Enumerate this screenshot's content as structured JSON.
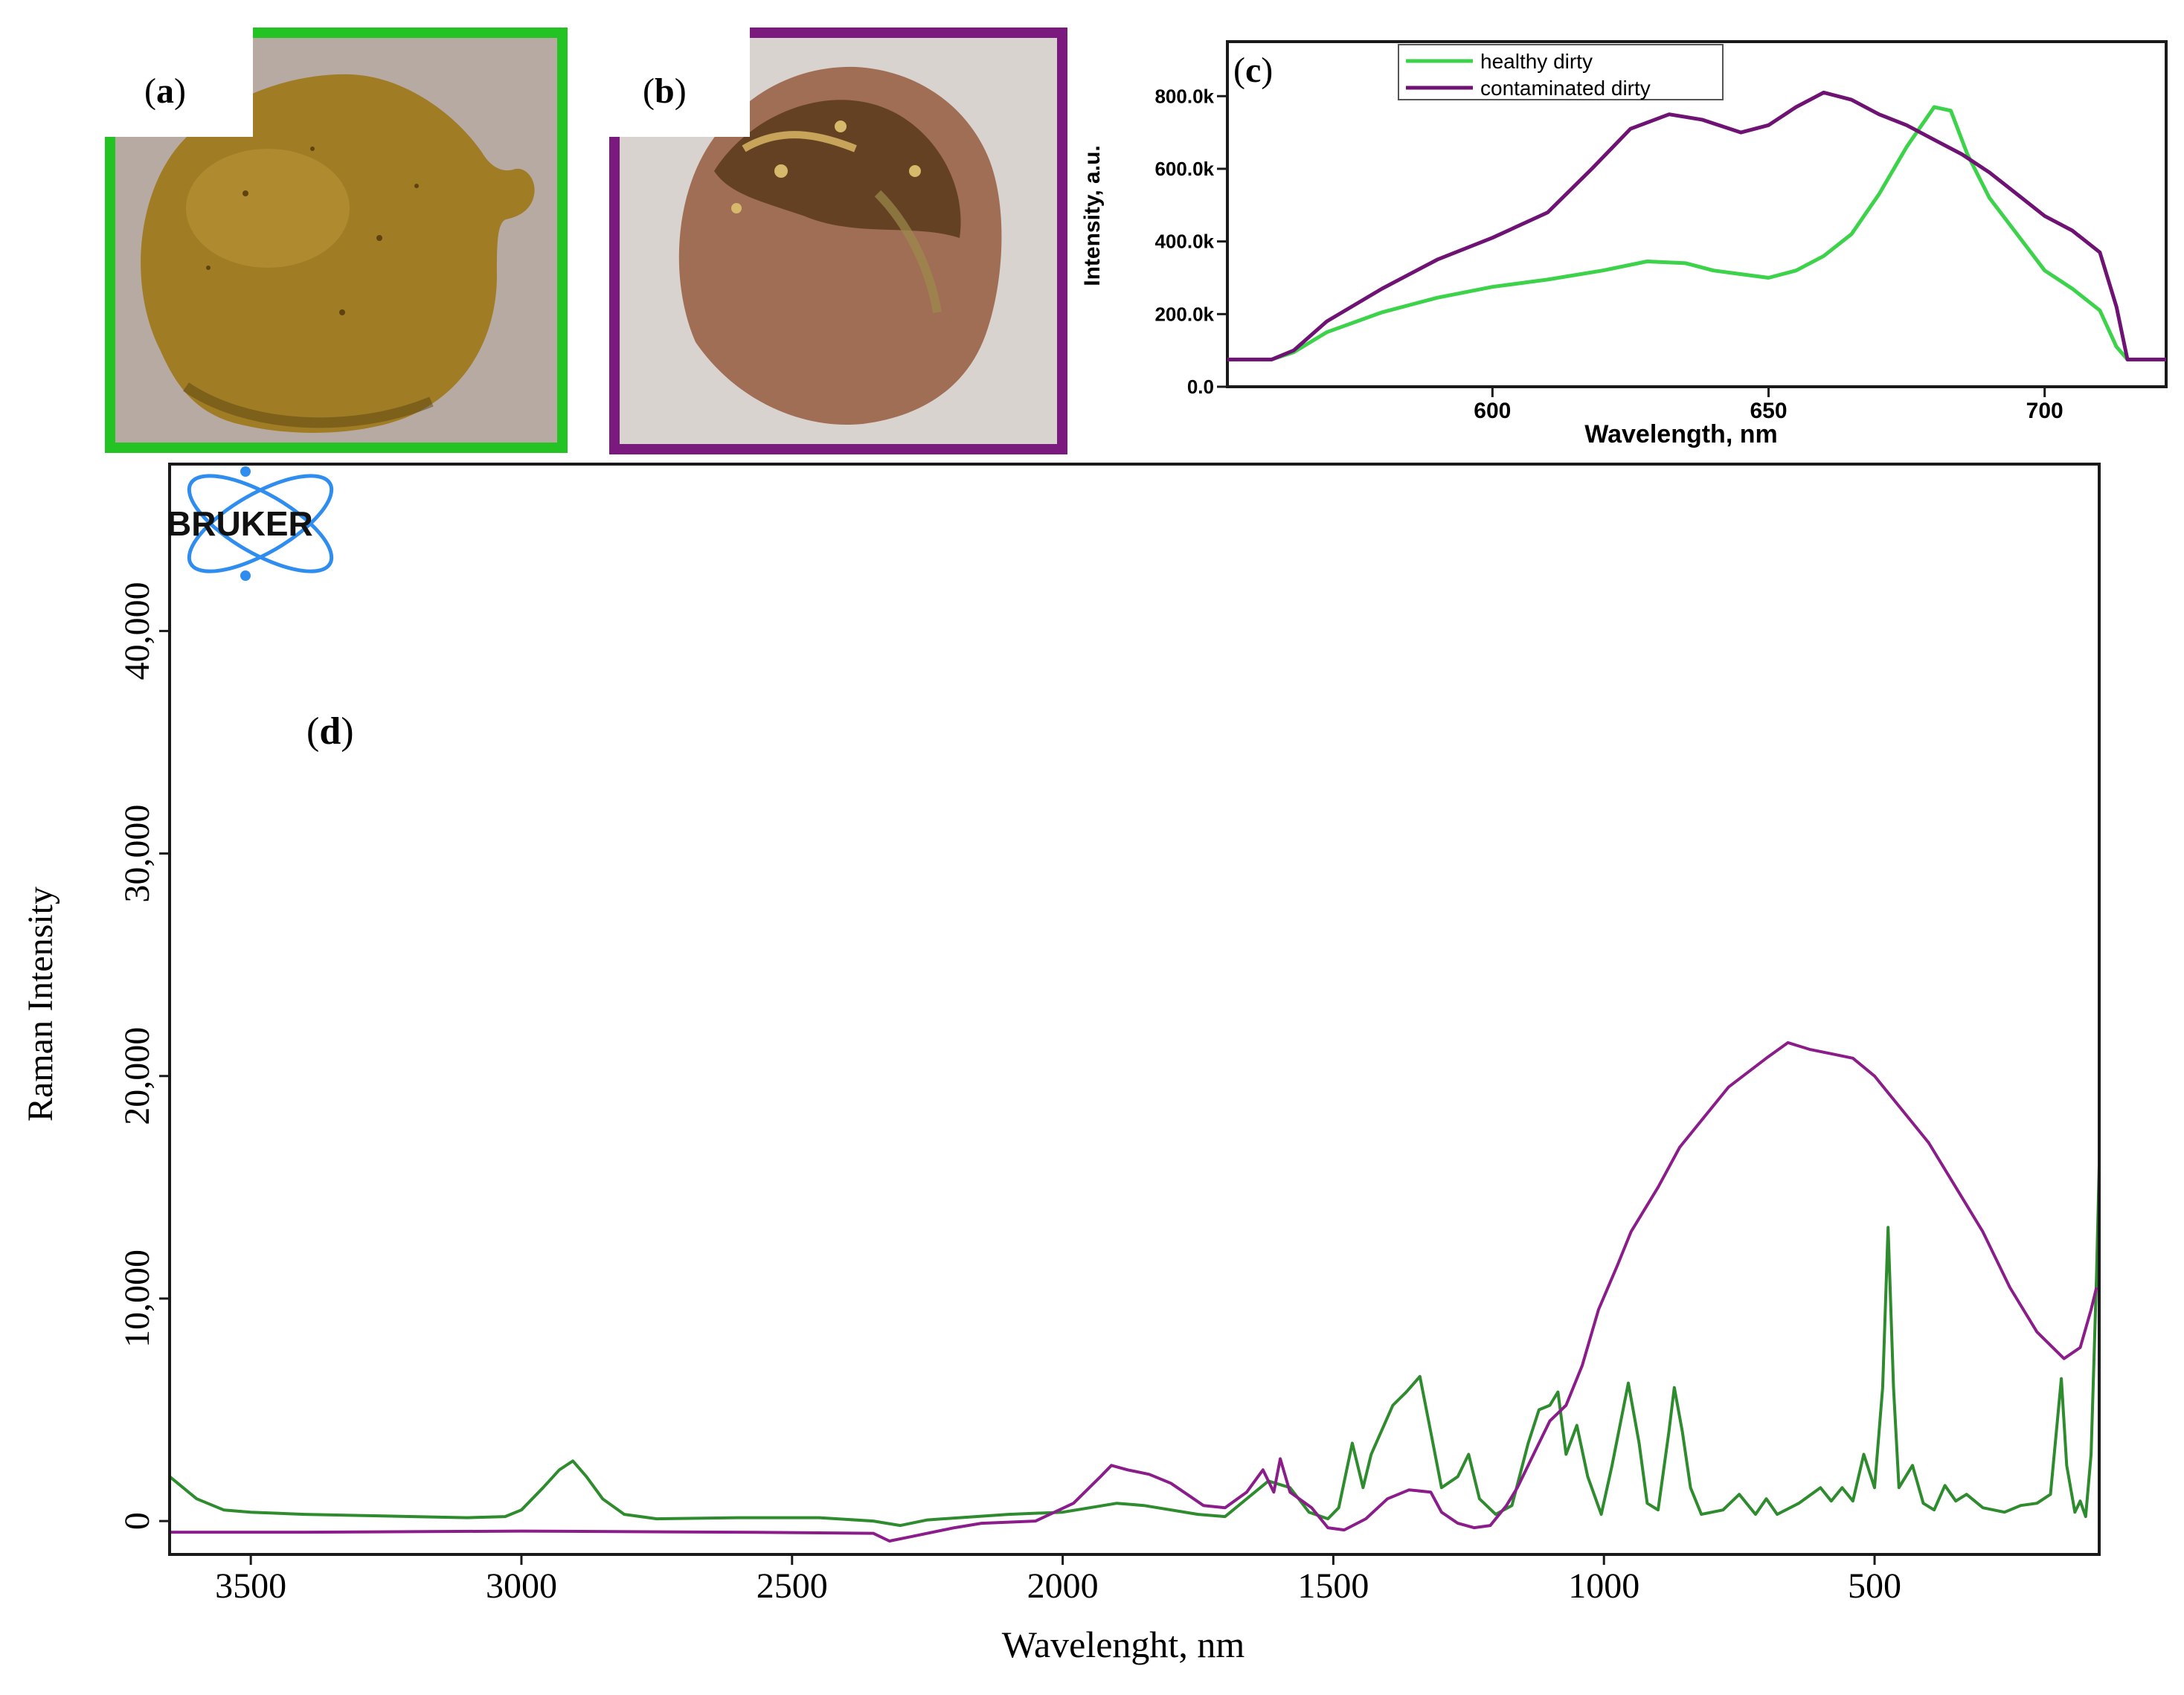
{
  "panels": {
    "a": {
      "label_open": "(",
      "label_letter": "a",
      "label_close": ")",
      "frame_color": "#22c322"
    },
    "b": {
      "label_open": "(",
      "label_letter": "b",
      "label_close": ")",
      "frame_color": "#7a1a7e"
    }
  },
  "logo": {
    "text": "BRUKER",
    "color": "#2f8df0"
  },
  "colors": {
    "healthy_c": "#3cd24a",
    "contaminated_c": "#6e1373",
    "healthy_d": "#2e8b2e",
    "contaminated_d": "#8b1d8b"
  },
  "chart_data": [
    {
      "panel": "c",
      "label_open": "(",
      "label_letter": "c",
      "label_close": ")",
      "type": "line",
      "xlabel": "Wavelength, nm",
      "ylabel": "Intensity, a.u.",
      "xlim": [
        552,
        722
      ],
      "ylim": [
        0,
        950000
      ],
      "xticks": [
        {
          "v": 600,
          "label": "600"
        },
        {
          "v": 650,
          "label": "650"
        },
        {
          "v": 700,
          "label": "700"
        }
      ],
      "yticks": [
        {
          "v": 0,
          "label": "0.0"
        },
        {
          "v": 200000,
          "label": "200.0k"
        },
        {
          "v": 400000,
          "label": "400.0k"
        },
        {
          "v": 600000,
          "label": "600.0k"
        },
        {
          "v": 800000,
          "label": "800.0k"
        }
      ],
      "legend_position": "top-left",
      "series": [
        {
          "name": "healthy dirty",
          "color": "#3cd24a",
          "points": [
            [
              552,
              75000
            ],
            [
              560,
              75000
            ],
            [
              564,
              95000
            ],
            [
              570,
              150000
            ],
            [
              580,
              205000
            ],
            [
              590,
              245000
            ],
            [
              600,
              275000
            ],
            [
              610,
              295000
            ],
            [
              620,
              320000
            ],
            [
              628,
              345000
            ],
            [
              635,
              340000
            ],
            [
              640,
              320000
            ],
            [
              645,
              310000
            ],
            [
              650,
              300000
            ],
            [
              655,
              320000
            ],
            [
              660,
              360000
            ],
            [
              665,
              420000
            ],
            [
              670,
              530000
            ],
            [
              675,
              660000
            ],
            [
              680,
              770000
            ],
            [
              683,
              760000
            ],
            [
              686,
              640000
            ],
            [
              690,
              520000
            ],
            [
              695,
              420000
            ],
            [
              700,
              320000
            ],
            [
              705,
              270000
            ],
            [
              710,
              210000
            ],
            [
              713,
              110000
            ],
            [
              715,
              75000
            ],
            [
              722,
              75000
            ]
          ]
        },
        {
          "name": "contaminated dirty",
          "color": "#6e1373",
          "points": [
            [
              552,
              75000
            ],
            [
              560,
              75000
            ],
            [
              564,
              100000
            ],
            [
              570,
              180000
            ],
            [
              580,
              270000
            ],
            [
              590,
              350000
            ],
            [
              600,
              410000
            ],
            [
              610,
              480000
            ],
            [
              618,
              600000
            ],
            [
              625,
              710000
            ],
            [
              632,
              750000
            ],
            [
              638,
              735000
            ],
            [
              645,
              700000
            ],
            [
              650,
              720000
            ],
            [
              655,
              770000
            ],
            [
              660,
              810000
            ],
            [
              665,
              790000
            ],
            [
              670,
              750000
            ],
            [
              675,
              720000
            ],
            [
              680,
              680000
            ],
            [
              685,
              640000
            ],
            [
              690,
              590000
            ],
            [
              695,
              530000
            ],
            [
              700,
              470000
            ],
            [
              705,
              430000
            ],
            [
              710,
              370000
            ],
            [
              713,
              220000
            ],
            [
              715,
              75000
            ],
            [
              722,
              75000
            ]
          ]
        }
      ]
    },
    {
      "panel": "d",
      "label_open": "(",
      "label_letter": "d",
      "label_close": ")",
      "type": "line",
      "xlabel": "Wavelenght, nm",
      "ylabel": "Raman Intensity",
      "xlim": [
        3650,
        85
      ],
      "ylim": [
        -1500,
        47500
      ],
      "xticks": [
        {
          "v": 3500,
          "label": "3500"
        },
        {
          "v": 3000,
          "label": "3000"
        },
        {
          "v": 2500,
          "label": "2500"
        },
        {
          "v": 2000,
          "label": "2000"
        },
        {
          "v": 1500,
          "label": "1500"
        },
        {
          "v": 1000,
          "label": "1000"
        },
        {
          "v": 500,
          "label": "500"
        }
      ],
      "yticks": [
        {
          "v": 0,
          "label": "0"
        },
        {
          "v": 10000,
          "label": "10,000"
        },
        {
          "v": 20000,
          "label": "20,000"
        },
        {
          "v": 30000,
          "label": "30,000"
        },
        {
          "v": 40000,
          "label": "40,000"
        }
      ],
      "series": [
        {
          "color": "#2e8b2e",
          "points": [
            [
              3650,
              2000
            ],
            [
              3600,
              1000
            ],
            [
              3550,
              500
            ],
            [
              3500,
              400
            ],
            [
              3400,
              300
            ],
            [
              3300,
              250
            ],
            [
              3200,
              200
            ],
            [
              3100,
              150
            ],
            [
              3030,
              200
            ],
            [
              3000,
              500
            ],
            [
              2960,
              1500
            ],
            [
              2930,
              2300
            ],
            [
              2905,
              2700
            ],
            [
              2880,
              2000
            ],
            [
              2850,
              1000
            ],
            [
              2810,
              300
            ],
            [
              2750,
              100
            ],
            [
              2600,
              150
            ],
            [
              2450,
              150
            ],
            [
              2350,
              0
            ],
            [
              2300,
              -200
            ],
            [
              2250,
              50
            ],
            [
              2100,
              300
            ],
            [
              2000,
              400
            ],
            [
              1900,
              800
            ],
            [
              1850,
              700
            ],
            [
              1750,
              300
            ],
            [
              1700,
              200
            ],
            [
              1660,
              1000
            ],
            [
              1620,
              1800
            ],
            [
              1580,
              1500
            ],
            [
              1545,
              400
            ],
            [
              1510,
              100
            ],
            [
              1490,
              600
            ],
            [
              1465,
              3500
            ],
            [
              1445,
              1500
            ],
            [
              1430,
              3000
            ],
            [
              1390,
              5200
            ],
            [
              1365,
              5800
            ],
            [
              1340,
              6500
            ],
            [
              1320,
              4000
            ],
            [
              1300,
              1500
            ],
            [
              1270,
              2000
            ],
            [
              1250,
              3000
            ],
            [
              1230,
              1000
            ],
            [
              1200,
              300
            ],
            [
              1170,
              700
            ],
            [
              1140,
              3500
            ],
            [
              1120,
              5000
            ],
            [
              1100,
              5200
            ],
            [
              1085,
              5800
            ],
            [
              1070,
              3000
            ],
            [
              1050,
              4300
            ],
            [
              1030,
              2000
            ],
            [
              1005,
              300
            ],
            [
              985,
              2500
            ],
            [
              955,
              6200
            ],
            [
              935,
              3500
            ],
            [
              920,
              800
            ],
            [
              900,
              500
            ],
            [
              880,
              4000
            ],
            [
              870,
              6000
            ],
            [
              855,
              4000
            ],
            [
              840,
              1500
            ],
            [
              820,
              300
            ],
            [
              780,
              500
            ],
            [
              750,
              1200
            ],
            [
              720,
              300
            ],
            [
              700,
              1000
            ],
            [
              680,
              300
            ],
            [
              640,
              800
            ],
            [
              600,
              1500
            ],
            [
              580,
              900
            ],
            [
              560,
              1500
            ],
            [
              540,
              900
            ],
            [
              520,
              3000
            ],
            [
              500,
              1500
            ],
            [
              485,
              6000
            ],
            [
              475,
              13200
            ],
            [
              465,
              6000
            ],
            [
              455,
              1500
            ],
            [
              430,
              2500
            ],
            [
              410,
              800
            ],
            [
              390,
              500
            ],
            [
              370,
              1600
            ],
            [
              350,
              900
            ],
            [
              330,
              1200
            ],
            [
              300,
              600
            ],
            [
              260,
              400
            ],
            [
              230,
              700
            ],
            [
              200,
              800
            ],
            [
              175,
              1200
            ],
            [
              155,
              6400
            ],
            [
              145,
              2500
            ],
            [
              130,
              400
            ],
            [
              120,
              900
            ],
            [
              110,
              200
            ],
            [
              100,
              3000
            ],
            [
              90,
              11000
            ],
            [
              85,
              16000
            ]
          ]
        },
        {
          "color": "#8b1d8b",
          "points": [
            [
              3650,
              -500
            ],
            [
              3400,
              -500
            ],
            [
              3000,
              -450
            ],
            [
              2600,
              -500
            ],
            [
              2350,
              -550
            ],
            [
              2320,
              -900
            ],
            [
              2280,
              -700
            ],
            [
              2200,
              -300
            ],
            [
              2150,
              -100
            ],
            [
              2050,
              0
            ],
            [
              1980,
              800
            ],
            [
              1930,
              2000
            ],
            [
              1910,
              2500
            ],
            [
              1880,
              2300
            ],
            [
              1840,
              2100
            ],
            [
              1800,
              1700
            ],
            [
              1770,
              1200
            ],
            [
              1740,
              700
            ],
            [
              1700,
              600
            ],
            [
              1660,
              1300
            ],
            [
              1630,
              2300
            ],
            [
              1610,
              1300
            ],
            [
              1598,
              2800
            ],
            [
              1580,
              1300
            ],
            [
              1540,
              600
            ],
            [
              1510,
              -300
            ],
            [
              1480,
              -400
            ],
            [
              1440,
              100
            ],
            [
              1400,
              1000
            ],
            [
              1360,
              1400
            ],
            [
              1320,
              1300
            ],
            [
              1300,
              400
            ],
            [
              1270,
              -100
            ],
            [
              1240,
              -300
            ],
            [
              1210,
              -200
            ],
            [
              1180,
              700
            ],
            [
              1160,
              1500
            ],
            [
              1130,
              3000
            ],
            [
              1100,
              4500
            ],
            [
              1070,
              5200
            ],
            [
              1040,
              7000
            ],
            [
              1010,
              9500
            ],
            [
              975,
              11500
            ],
            [
              950,
              13000
            ],
            [
              900,
              15000
            ],
            [
              860,
              16800
            ],
            [
              820,
              18000
            ],
            [
              770,
              19500
            ],
            [
              700,
              20800
            ],
            [
              660,
              21500
            ],
            [
              620,
              21200
            ],
            [
              580,
              21000
            ],
            [
              540,
              20800
            ],
            [
              500,
              20000
            ],
            [
              450,
              18500
            ],
            [
              400,
              17000
            ],
            [
              350,
              15000
            ],
            [
              300,
              13000
            ],
            [
              250,
              10500
            ],
            [
              200,
              8500
            ],
            [
              150,
              7300
            ],
            [
              120,
              7800
            ],
            [
              100,
              9500
            ],
            [
              90,
              10500
            ]
          ]
        }
      ]
    }
  ]
}
